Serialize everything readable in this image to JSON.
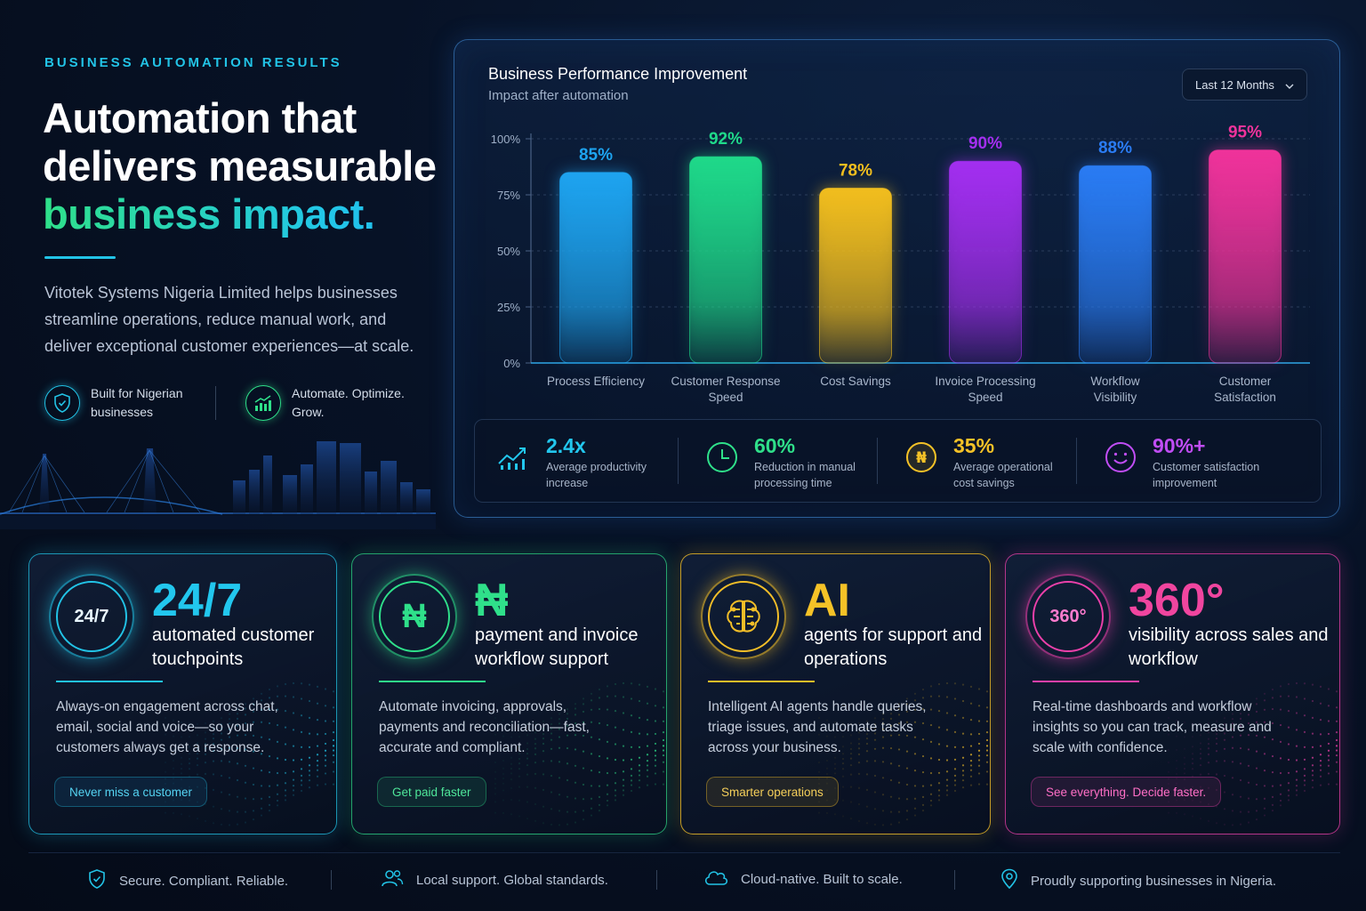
{
  "hero": {
    "eyebrow": "BUSINESS AUTOMATION RESULTS",
    "headline_line1": "Automation that",
    "headline_line2": "delivers measurable",
    "headline_accent": "business impact.",
    "description": "Vitotek Systems Nigeria Limited helps businesses streamline operations, reduce manual work, and deliver exceptional customer experiences—at scale.",
    "features": [
      {
        "icon": "shield-check-icon",
        "label": "Built for Nigerian businesses"
      },
      {
        "icon": "growth-chart-icon",
        "label": "Automate. Optimize. Grow."
      }
    ]
  },
  "panel": {
    "title": "Business Performance Improvement",
    "subtitle": "Impact after automation",
    "range_selector": "Last 12 Months"
  },
  "chart_data": {
    "type": "bar",
    "title": "Business Performance Improvement",
    "subtitle": "Impact after automation",
    "categories": [
      "Process Efficiency",
      "Customer Response Speed",
      "Cost Savings",
      "Invoice Processing Speed",
      "Workflow Visibility",
      "Customer Satisfaction"
    ],
    "category_lines": [
      [
        "Process Efficiency"
      ],
      [
        "Customer Response",
        "Speed"
      ],
      [
        "Cost Savings"
      ],
      [
        "Invoice Processing",
        "Speed"
      ],
      [
        "Workflow",
        "Visibility"
      ],
      [
        "Customer",
        "Satisfaction"
      ]
    ],
    "values": [
      85,
      92,
      78,
      90,
      88,
      95
    ],
    "value_labels": [
      "85%",
      "92%",
      "78%",
      "90%",
      "88%",
      "95%"
    ],
    "colors": [
      "#1ea4f0",
      "#1fd98a",
      "#f2be1e",
      "#a32ff0",
      "#2a7cf4",
      "#f0339b"
    ],
    "yticks": [
      "0%",
      "25%",
      "50%",
      "75%",
      "100%"
    ],
    "ylim": [
      0,
      100
    ],
    "grid": true
  },
  "stats": [
    {
      "value": "2.4x",
      "label": "Average productivity increase",
      "color": "#22c7ee",
      "icon": "trend-up-icon"
    },
    {
      "value": "60%",
      "label": "Reduction in manual processing time",
      "color": "#2fe08a",
      "icon": "clock-icon"
    },
    {
      "value": "35%",
      "label": "Average operational cost savings",
      "color": "#f5c227",
      "icon": "naira-coin-icon"
    },
    {
      "value": "90%+",
      "label": "Customer satisfaction improvement",
      "color": "#c04df5",
      "icon": "smile-icon"
    }
  ],
  "cards": [
    {
      "ring": "24/7",
      "big": "24/7",
      "sub": "automated customer touchpoints",
      "desc": "Always-on engagement across chat, email, social and voice—so your customers always get a response.",
      "pill": "Never miss a customer"
    },
    {
      "ring": "₦",
      "big": "₦",
      "sub": "payment and invoice workflow support",
      "desc": "Automate invoicing, approvals, payments and reconciliation—fast, accurate and compliant.",
      "pill": "Get paid faster"
    },
    {
      "ring": "brain-icon",
      "big": "AI",
      "sub": "agents for support and operations",
      "desc": "Intelligent AI agents handle queries, triage issues, and automate tasks across your business.",
      "pill": "Smarter operations"
    },
    {
      "ring": "360°",
      "big": "360°",
      "sub": "visibility across sales and workflow",
      "desc": "Real-time dashboards and workflow insights so you can track, measure and scale with confidence.",
      "pill": "See everything. Decide faster."
    }
  ],
  "footer": [
    {
      "icon": "shield-icon",
      "label": "Secure. Compliant. Reliable."
    },
    {
      "icon": "users-icon",
      "label": "Local support. Global standards."
    },
    {
      "icon": "cloud-icon",
      "label": "Cloud-native. Built to scale."
    },
    {
      "icon": "location-pin-icon",
      "label": "Proudly supporting businesses in Nigeria."
    }
  ]
}
